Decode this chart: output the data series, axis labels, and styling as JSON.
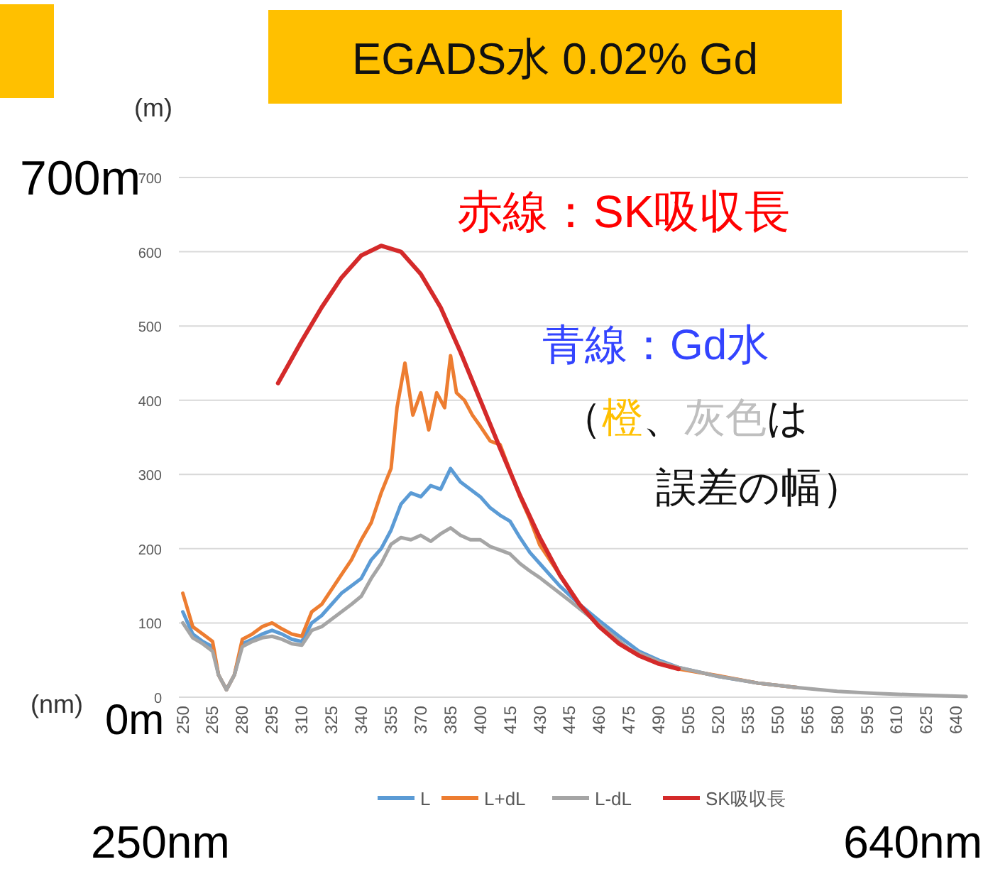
{
  "chart_data": {
    "type": "line",
    "title": "EGADS水 0.02% Gd",
    "xlabel": "(nm)",
    "ylabel": "(m)",
    "xlim": [
      248,
      646
    ],
    "xticks": [
      250,
      265,
      280,
      295,
      310,
      325,
      340,
      355,
      370,
      385,
      400,
      415,
      430,
      445,
      460,
      475,
      490,
      505,
      520,
      535,
      550,
      565,
      580,
      595,
      610,
      625,
      640
    ],
    "ylim": [
      0,
      700
    ],
    "yticks": [
      0,
      100,
      200,
      300,
      400,
      500,
      600,
      700
    ],
    "grid": "y",
    "legend": "bottom",
    "annotations": [
      "赤線：SK吸収長",
      "青線：Gd水",
      "（",
      "橙",
      "、",
      "灰色",
      "は",
      "誤差の幅）",
      "700m",
      "0m",
      "250nm",
      "640nm"
    ],
    "series": [
      {
        "name": "L",
        "color": "#5b9bd5",
        "x": [
          250,
          255,
          260,
          265,
          268,
          272,
          276,
          280,
          285,
          290,
          295,
          300,
          305,
          310,
          315,
          320,
          325,
          330,
          335,
          340,
          345,
          350,
          355,
          360,
          365,
          370,
          375,
          380,
          385,
          390,
          395,
          400,
          405,
          410,
          415,
          420,
          425,
          430,
          440,
          450,
          460,
          470,
          480,
          490,
          500,
          520,
          540,
          560
        ],
        "values": [
          115,
          85,
          75,
          68,
          30,
          10,
          30,
          72,
          78,
          85,
          90,
          85,
          78,
          75,
          100,
          110,
          125,
          140,
          150,
          160,
          185,
          200,
          225,
          260,
          275,
          270,
          285,
          280,
          308,
          290,
          280,
          270,
          255,
          245,
          237,
          215,
          195,
          180,
          150,
          125,
          103,
          82,
          62,
          50,
          40,
          28,
          19,
          13
        ]
      },
      {
        "name": "L+dL",
        "color": "#ed7d31",
        "x": [
          250,
          255,
          260,
          265,
          268,
          272,
          276,
          280,
          285,
          290,
          295,
          300,
          305,
          310,
          315,
          320,
          325,
          330,
          335,
          340,
          345,
          350,
          355,
          358,
          362,
          366,
          370,
          374,
          378,
          382,
          385,
          388,
          392,
          396,
          400,
          405,
          410,
          415,
          420,
          425,
          430,
          440,
          450,
          460,
          470,
          480,
          490,
          500,
          520,
          540,
          560
        ],
        "values": [
          140,
          95,
          85,
          75,
          30,
          10,
          30,
          78,
          85,
          95,
          100,
          92,
          85,
          82,
          115,
          125,
          145,
          165,
          185,
          212,
          235,
          275,
          308,
          390,
          450,
          380,
          410,
          360,
          410,
          390,
          460,
          410,
          400,
          380,
          365,
          345,
          340,
          305,
          270,
          240,
          205,
          165,
          125,
          95,
          72,
          56,
          45,
          38,
          29,
          19,
          13
        ]
      },
      {
        "name": "L-dL",
        "color": "#a5a5a5",
        "x": [
          250,
          255,
          260,
          265,
          268,
          272,
          276,
          280,
          285,
          290,
          295,
          300,
          305,
          310,
          315,
          320,
          325,
          330,
          335,
          340,
          345,
          350,
          355,
          360,
          365,
          370,
          375,
          380,
          385,
          390,
          395,
          400,
          405,
          410,
          415,
          420,
          425,
          430,
          445,
          460,
          475,
          490,
          500,
          520,
          540,
          560,
          580,
          600,
          620,
          645
        ],
        "values": [
          100,
          80,
          72,
          62,
          30,
          10,
          30,
          68,
          75,
          80,
          82,
          78,
          72,
          70,
          90,
          95,
          105,
          115,
          125,
          136,
          160,
          180,
          206,
          215,
          212,
          218,
          210,
          220,
          228,
          218,
          212,
          212,
          203,
          198,
          193,
          180,
          170,
          161,
          130,
          98,
          65,
          48,
          40,
          28,
          19,
          13,
          8,
          5,
          3,
          1
        ]
      },
      {
        "name": "SK吸収長",
        "color": "#d42a2a",
        "x": [
          298,
          310,
          320,
          330,
          340,
          350,
          360,
          370,
          380,
          390,
          400,
          410,
          420,
          430,
          440,
          450,
          460,
          470,
          480,
          490,
          500
        ],
        "values": [
          423,
          480,
          525,
          565,
          595,
          608,
          600,
          570,
          525,
          465,
          400,
          335,
          272,
          215,
          165,
          125,
          95,
          72,
          56,
          45,
          38
        ]
      }
    ]
  }
}
